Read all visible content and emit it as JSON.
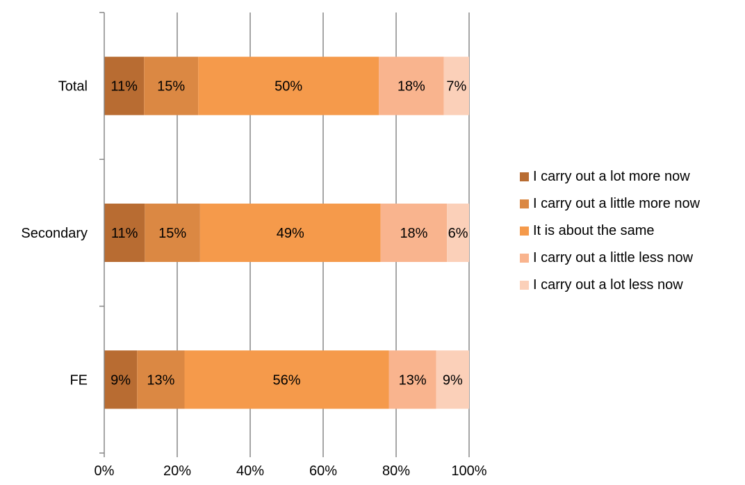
{
  "chart_data": {
    "type": "bar",
    "orientation": "horizontal",
    "stacked": "percent",
    "categories": [
      "Total",
      "Secondary",
      "FE"
    ],
    "series": [
      {
        "name": "I carry out a lot more now",
        "color": "#B86C32",
        "values": [
          11,
          11,
          9
        ],
        "labels": [
          "11%",
          "11%",
          "9%"
        ]
      },
      {
        "name": "I carry out a little more now",
        "color": "#DB8843",
        "values": [
          15,
          15,
          13
        ],
        "labels": [
          "15%",
          "15%",
          "13%"
        ]
      },
      {
        "name": "It is about the same",
        "color": "#F59A4B",
        "values": [
          50,
          49,
          56
        ],
        "labels": [
          "50%",
          "49%",
          "56%"
        ]
      },
      {
        "name": "I carry out a little less now",
        "color": "#F9B48E",
        "values": [
          18,
          18,
          13
        ],
        "labels": [
          "18%",
          "18%",
          "13%"
        ]
      },
      {
        "name": "I carry out a lot less now",
        "color": "#FBD0B9",
        "values": [
          7,
          6,
          9
        ],
        "labels": [
          "7%",
          "6%",
          "9%"
        ]
      }
    ],
    "xlim": [
      0,
      100
    ],
    "xticks": [
      "0%",
      "20%",
      "40%",
      "60%",
      "80%",
      "100%"
    ],
    "grid": "vertical",
    "legend_position": "right",
    "title": "",
    "xlabel": "",
    "ylabel": ""
  }
}
